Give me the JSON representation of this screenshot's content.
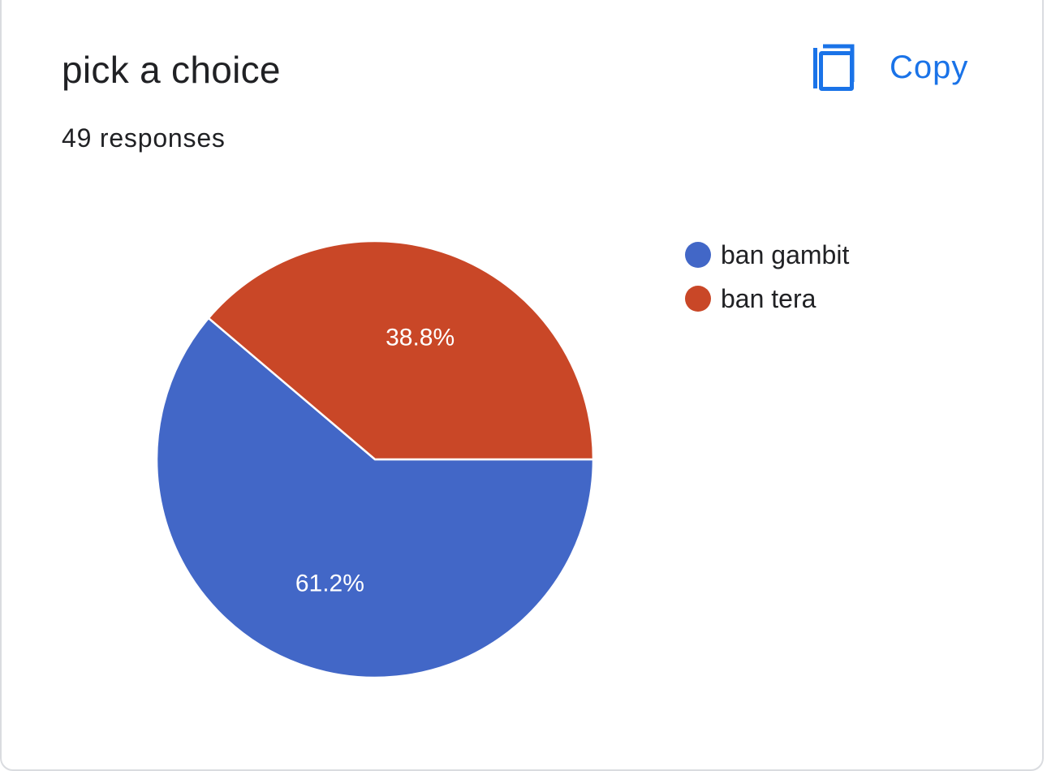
{
  "header": {
    "title": "pick a choice",
    "responses": "49 responses",
    "copy_label": "Copy",
    "copy_icon": "copy-icon"
  },
  "colors": {
    "accent": "#1a73e8",
    "series_1": "#4267c7",
    "series_2": "#c94727",
    "slice_border": "#ffffff"
  },
  "chart_data": {
    "type": "pie",
    "title": "pick a choice",
    "categories": [
      "ban gambit",
      "ban tera"
    ],
    "values": [
      61.2,
      38.8
    ],
    "labels": [
      "61.2%",
      "38.8%"
    ],
    "colors": [
      "#4267c7",
      "#c94727"
    ],
    "legend_position": "right"
  }
}
